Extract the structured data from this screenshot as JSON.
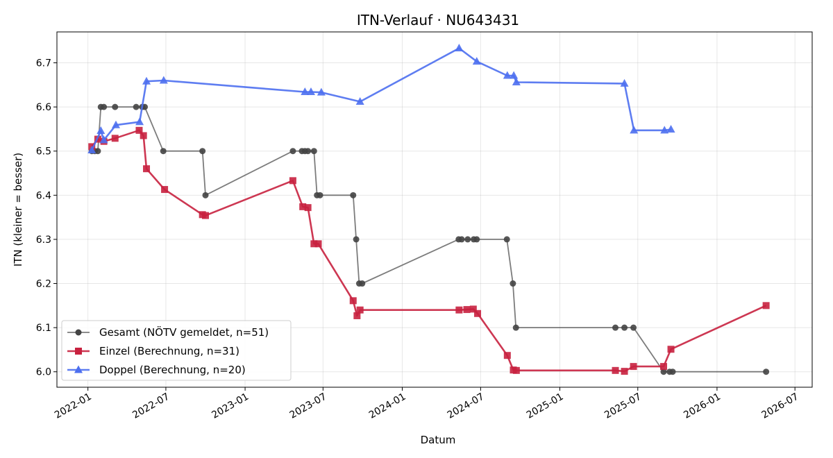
{
  "chart_data": {
    "type": "line",
    "title": "ITN-Verlauf · NU643431",
    "xlabel": "Datum",
    "ylabel": "ITN  (kleiner = besser)",
    "x_type": "date",
    "xlim": [
      "2021-10-21",
      "2026-08-10"
    ],
    "ylim": [
      5.965,
      6.77
    ],
    "x_ticks": [
      "2022-01",
      "2022-07",
      "2023-01",
      "2023-07",
      "2024-01",
      "2024-07",
      "2025-01",
      "2025-07",
      "2026-01",
      "2026-07"
    ],
    "y_ticks": [
      "6.0",
      "6.1",
      "6.2",
      "6.3",
      "6.4",
      "6.5",
      "6.6",
      "6.7"
    ],
    "grid": true,
    "legend_position": "lower-left",
    "series": [
      {
        "name": "Gesamt (NÖTV gemeldet, n=51)",
        "color": "#444444",
        "marker": "circle",
        "points": [
          [
            "2022-01-10",
            6.5
          ],
          [
            "2022-01-17",
            6.5
          ],
          [
            "2022-01-24",
            6.5
          ],
          [
            "2022-01-31",
            6.6
          ],
          [
            "2022-02-07",
            6.6
          ],
          [
            "2022-03-05",
            6.6
          ],
          [
            "2022-04-23",
            6.6
          ],
          [
            "2022-05-07",
            6.6
          ],
          [
            "2022-05-13",
            6.6
          ],
          [
            "2022-06-25",
            6.5
          ],
          [
            "2022-09-24",
            6.5
          ],
          [
            "2022-10-01",
            6.4
          ],
          [
            "2023-04-22",
            6.5
          ],
          [
            "2023-05-13",
            6.5
          ],
          [
            "2023-05-20",
            6.5
          ],
          [
            "2023-05-27",
            6.5
          ],
          [
            "2023-06-10",
            6.5
          ],
          [
            "2023-06-17",
            6.4
          ],
          [
            "2023-06-24",
            6.4
          ],
          [
            "2023-09-09",
            6.4
          ],
          [
            "2023-09-16",
            6.3
          ],
          [
            "2023-09-23",
            6.2
          ],
          [
            "2023-09-30",
            6.2
          ],
          [
            "2024-05-11",
            6.3
          ],
          [
            "2024-05-18",
            6.3
          ],
          [
            "2024-06-01",
            6.3
          ],
          [
            "2024-06-15",
            6.3
          ],
          [
            "2024-06-22",
            6.3
          ],
          [
            "2024-08-31",
            6.3
          ],
          [
            "2024-09-14",
            6.2
          ],
          [
            "2024-09-21",
            6.1
          ],
          [
            "2025-05-10",
            6.1
          ],
          [
            "2025-05-31",
            6.1
          ],
          [
            "2025-06-21",
            6.1
          ],
          [
            "2025-08-30",
            6.0
          ],
          [
            "2025-09-13",
            6.0
          ],
          [
            "2025-09-20",
            6.0
          ],
          [
            "2026-04-25",
            6.0
          ]
        ]
      },
      {
        "name": "Einzel (Berechnung, n=31)",
        "color": "#c8213f",
        "marker": "square",
        "points": [
          [
            "2022-01-10",
            6.51
          ],
          [
            "2022-01-24",
            6.527
          ],
          [
            "2022-02-07",
            6.522
          ],
          [
            "2022-03-05",
            6.529
          ],
          [
            "2022-04-30",
            6.547
          ],
          [
            "2022-05-10",
            6.535
          ],
          [
            "2022-05-17",
            6.46
          ],
          [
            "2022-06-28",
            6.413
          ],
          [
            "2022-09-24",
            6.356
          ],
          [
            "2022-10-01",
            6.354
          ],
          [
            "2023-04-22",
            6.433
          ],
          [
            "2023-05-15",
            6.374
          ],
          [
            "2023-05-27",
            6.372
          ],
          [
            "2023-06-10",
            6.29
          ],
          [
            "2023-06-20",
            6.29
          ],
          [
            "2023-09-09",
            6.161
          ],
          [
            "2023-09-18",
            6.127
          ],
          [
            "2023-09-25",
            6.14
          ],
          [
            "2024-05-12",
            6.14
          ],
          [
            "2024-05-30",
            6.141
          ],
          [
            "2024-06-14",
            6.142
          ],
          [
            "2024-06-24",
            6.132
          ],
          [
            "2024-09-01",
            6.037
          ],
          [
            "2024-09-15",
            6.004
          ],
          [
            "2024-09-22",
            6.003
          ],
          [
            "2025-05-10",
            6.003
          ],
          [
            "2025-05-31",
            6.001
          ],
          [
            "2025-06-21",
            6.012
          ],
          [
            "2025-08-30",
            6.012
          ],
          [
            "2025-09-16",
            6.051
          ],
          [
            "2026-04-25",
            6.15
          ]
        ]
      },
      {
        "name": "Doppel (Berechnung, n=20)",
        "color": "#4d6fef",
        "marker": "triangle",
        "points": [
          [
            "2022-01-10",
            6.502
          ],
          [
            "2022-01-31",
            6.546
          ],
          [
            "2022-02-07",
            6.525
          ],
          [
            "2022-03-07",
            6.559
          ],
          [
            "2022-05-01",
            6.566
          ],
          [
            "2022-05-17",
            6.658
          ],
          [
            "2022-06-26",
            6.66
          ],
          [
            "2023-05-20",
            6.634
          ],
          [
            "2023-06-03",
            6.634
          ],
          [
            "2023-06-27",
            6.633
          ],
          [
            "2023-09-25",
            6.612
          ],
          [
            "2024-05-12",
            6.733
          ],
          [
            "2024-06-22",
            6.703
          ],
          [
            "2024-09-01",
            6.671
          ],
          [
            "2024-09-16",
            6.671
          ],
          [
            "2024-09-22",
            6.656
          ],
          [
            "2025-05-31",
            6.653
          ],
          [
            "2025-06-22",
            6.547
          ],
          [
            "2025-09-01",
            6.547
          ],
          [
            "2025-09-16",
            6.549
          ]
        ]
      }
    ]
  }
}
